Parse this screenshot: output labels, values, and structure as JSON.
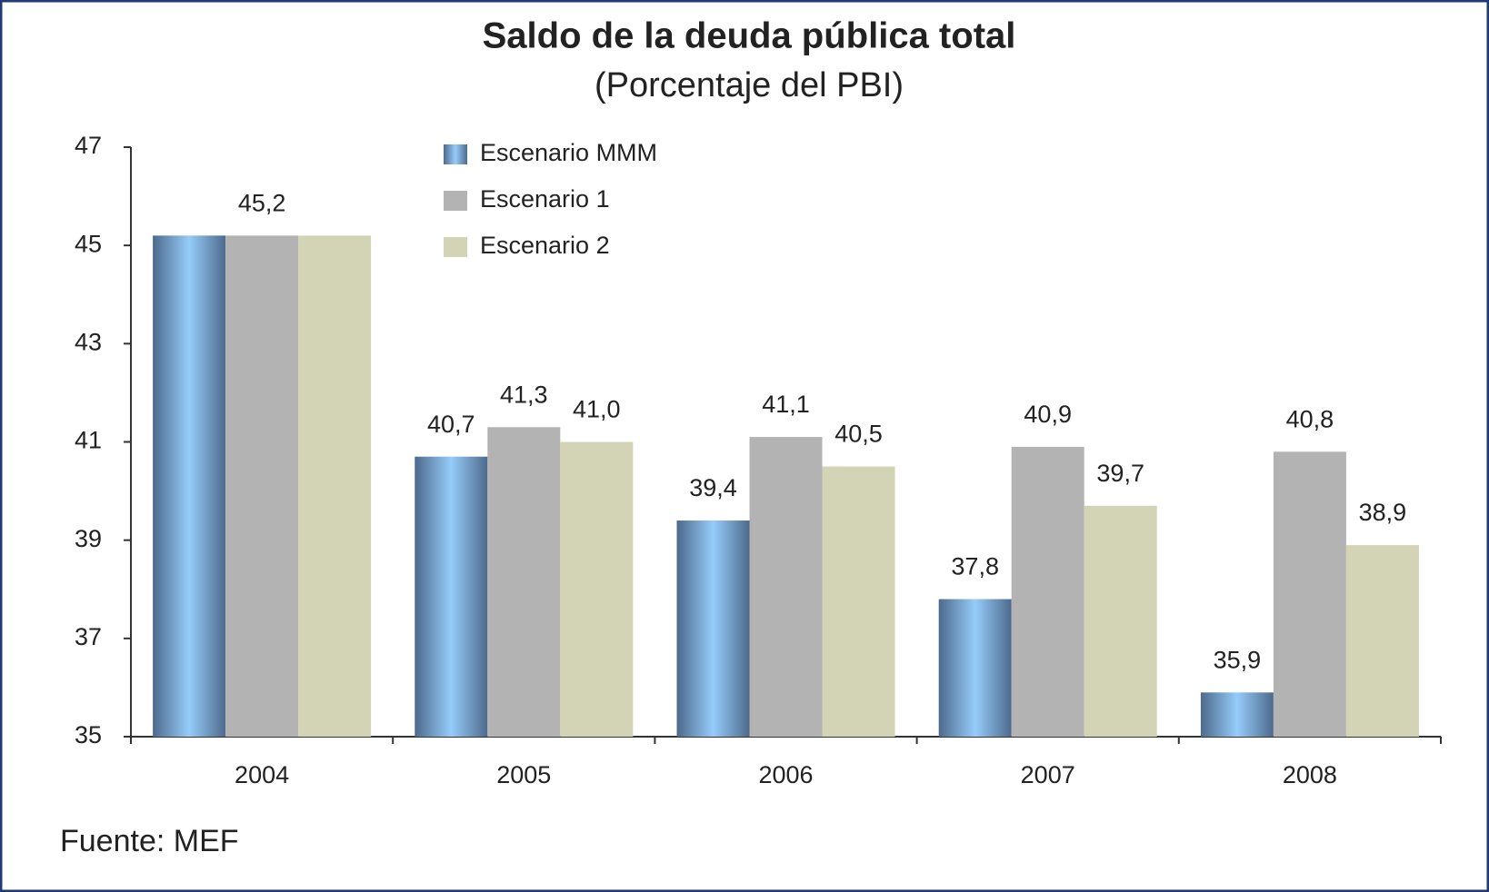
{
  "chart_data": {
    "type": "bar",
    "title": "Saldo de la deuda pública total",
    "subtitle": "(Porcentaje del PBI)",
    "categories": [
      "2004",
      "2005",
      "2006",
      "2007",
      "2008"
    ],
    "series": [
      {
        "name": "Escenario MMM",
        "color": "#4d6a8c",
        "values": [
          45.2,
          40.7,
          39.4,
          37.8,
          35.9
        ],
        "value_labels": [
          null,
          "40,7",
          "39,4",
          "37,8",
          "35,9"
        ]
      },
      {
        "name": "Escenario 1",
        "color": "#b3b3b3",
        "values": [
          45.2,
          41.3,
          41.1,
          40.9,
          40.8
        ],
        "value_labels": [
          "45,2",
          "41,3",
          "41,1",
          "40,9",
          "40,8"
        ]
      },
      {
        "name": "Escenario 2",
        "color": "#d3d3b6",
        "values": [
          45.2,
          41.0,
          40.5,
          39.7,
          38.9
        ],
        "value_labels": [
          null,
          "41,0",
          "40,5",
          "39,7",
          "38,9"
        ]
      }
    ],
    "ylim": [
      35,
      47
    ],
    "yticks": [
      35,
      37,
      39,
      41,
      43,
      45,
      47
    ],
    "grid": false,
    "legend_position": "upper center",
    "note": "Fuente: MEF"
  }
}
